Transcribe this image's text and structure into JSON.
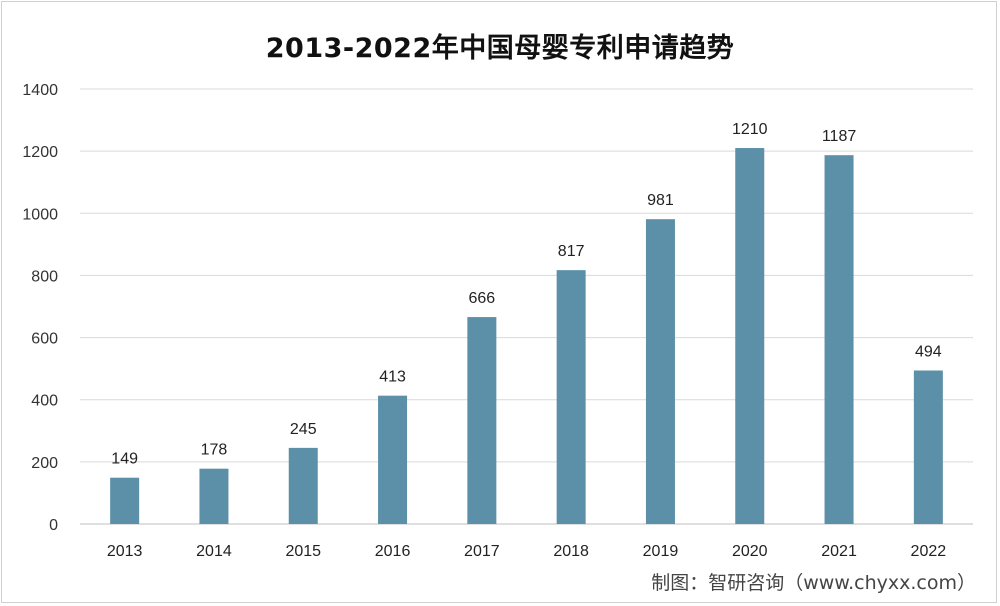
{
  "chart_data": {
    "type": "bar",
    "title": "2013-2022年中国母婴专利申请趋势",
    "categories": [
      "2013",
      "2014",
      "2015",
      "2016",
      "2017",
      "2018",
      "2019",
      "2020",
      "2021",
      "2022"
    ],
    "values": [
      149,
      178,
      245,
      413,
      666,
      817,
      981,
      1210,
      1187,
      494
    ],
    "ylim": [
      0,
      1400
    ],
    "yticks": [
      0,
      200,
      400,
      600,
      800,
      1000,
      1200,
      1400
    ],
    "grid": true,
    "bar_color": "#5b90a8",
    "xlabel": "",
    "ylabel": ""
  },
  "source": "制图：智研咨询（www.chyxx.com）"
}
